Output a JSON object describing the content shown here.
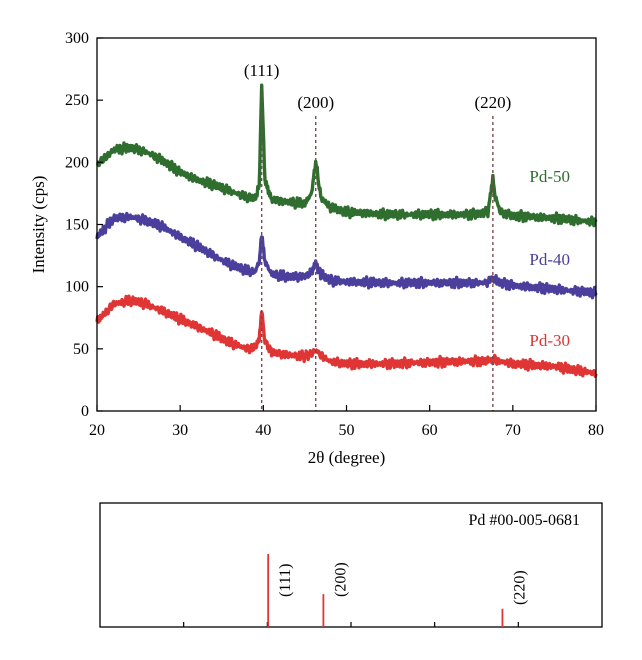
{
  "chart_data": [
    {
      "type": "line",
      "xlabel": "2θ (degree)",
      "ylabel": "Intensity (cps)",
      "xlim": [
        20,
        80
      ],
      "ylim": [
        0,
        300
      ],
      "xticks": [
        20,
        30,
        40,
        50,
        60,
        70,
        80
      ],
      "yticks": [
        0,
        50,
        100,
        150,
        200,
        250,
        300
      ],
      "grid": false,
      "peak_markers": [
        {
          "label": "(111)",
          "x": 39.8
        },
        {
          "label": "(200)",
          "x": 46.3
        },
        {
          "label": "(220)",
          "x": 67.6
        }
      ],
      "series": [
        {
          "name": "Pd-50",
          "color": "#2f6e2f",
          "x": [
            20,
            22,
            24,
            26,
            28,
            30,
            32,
            34,
            36,
            38,
            39,
            39.5,
            39.8,
            40.2,
            41,
            43,
            45,
            45.8,
            46.3,
            46.9,
            48,
            50,
            55,
            60,
            65,
            67,
            67.3,
            67.6,
            67.9,
            68.5,
            70,
            75,
            80
          ],
          "values": [
            198,
            210,
            212,
            208,
            201,
            192,
            186,
            182,
            177,
            172,
            171,
            180,
            262,
            185,
            170,
            168,
            167,
            175,
            201,
            172,
            164,
            160,
            158,
            158,
            158,
            160,
            172,
            188,
            172,
            160,
            157,
            155,
            152
          ]
        },
        {
          "name": "Pd-40",
          "color": "#4a3f9c",
          "x": [
            20,
            22,
            24,
            26,
            28,
            30,
            32,
            34,
            36,
            38,
            39,
            39.5,
            39.8,
            40.2,
            41,
            43,
            45,
            45.8,
            46.3,
            46.9,
            48,
            50,
            55,
            60,
            65,
            67,
            67.3,
            67.6,
            67.9,
            68.5,
            70,
            75,
            80
          ],
          "values": [
            140,
            155,
            156,
            153,
            148,
            140,
            133,
            125,
            118,
            113,
            112,
            120,
            142,
            120,
            110,
            108,
            108,
            112,
            119,
            110,
            105,
            104,
            103,
            103,
            103,
            103,
            105,
            109,
            105,
            103,
            101,
            98,
            95
          ]
        },
        {
          "name": "Pd-30",
          "color": "#e03535",
          "x": [
            20,
            22,
            24,
            26,
            28,
            30,
            32,
            34,
            36,
            38,
            39,
            39.5,
            39.8,
            40.2,
            41,
            43,
            45,
            45.8,
            46.3,
            46.9,
            48,
            50,
            55,
            60,
            65,
            67,
            67.3,
            67.6,
            67.9,
            68.5,
            70,
            75,
            80
          ],
          "values": [
            72,
            86,
            89,
            86,
            80,
            74,
            68,
            62,
            55,
            50,
            51,
            58,
            80,
            56,
            47,
            45,
            44,
            46,
            49,
            45,
            40,
            38,
            38,
            39,
            40,
            40,
            41,
            42,
            41,
            40,
            38,
            36,
            30
          ]
        }
      ]
    },
    {
      "type": "bar",
      "title": "Pd #00-005-0681",
      "xlim": [
        20,
        80
      ],
      "xticks": [
        30,
        40,
        50,
        60,
        70
      ],
      "color": "#e03535",
      "peaks": [
        {
          "label": "(111)",
          "x": 40.1,
          "relative_intensity": 100
        },
        {
          "label": "(200)",
          "x": 46.7,
          "relative_intensity": 45
        },
        {
          "label": "(220)",
          "x": 68.1,
          "relative_intensity": 25
        }
      ]
    }
  ]
}
